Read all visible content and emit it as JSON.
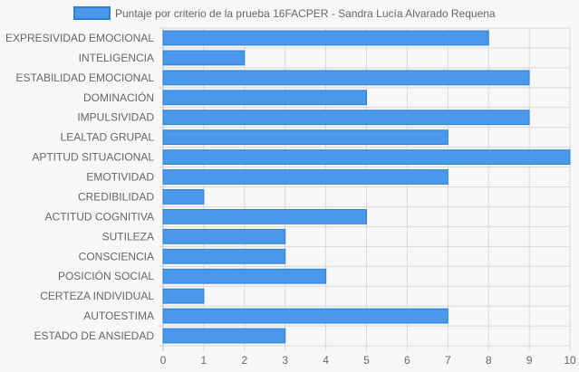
{
  "chart_data": {
    "type": "bar",
    "orientation": "horizontal",
    "categories": [
      "EXPRESIVIDAD EMOCIONAL",
      "INTELIGENCIA",
      "ESTABILIDAD EMOCIONAL",
      "DOMINACIÓN",
      "IMPULSIVIDAD",
      "LEALTAD GRUPAL",
      "APTITUD SITUACIONAL",
      "EMOTIVIDAD",
      "CREDIBILIDAD",
      "ACTITUD COGNITIVA",
      "SUTILEZA",
      "CONSCIENCIA",
      "POSICIÓN SOCIAL",
      "CERTEZA INDIVIDUAL",
      "AUTOESTIMA",
      "ESTADO DE ANSIEDAD"
    ],
    "series": [
      {
        "name": "Puntaje por criterio de la prueba 16FACPER - Sandra Lucía Alvarado Requena",
        "values": [
          8,
          2,
          9,
          5,
          9,
          7,
          10,
          7,
          1,
          5,
          3,
          3,
          4,
          1,
          7,
          3
        ],
        "color": "#4a98ea",
        "border_color": "#2f7fd8"
      }
    ],
    "x_ticks": [
      "0",
      "1",
      "2",
      "3",
      "4",
      "5",
      "6",
      "7",
      "8",
      "9",
      "10"
    ],
    "xlim": [
      0,
      10
    ],
    "grid": true,
    "legend_position": "top"
  }
}
